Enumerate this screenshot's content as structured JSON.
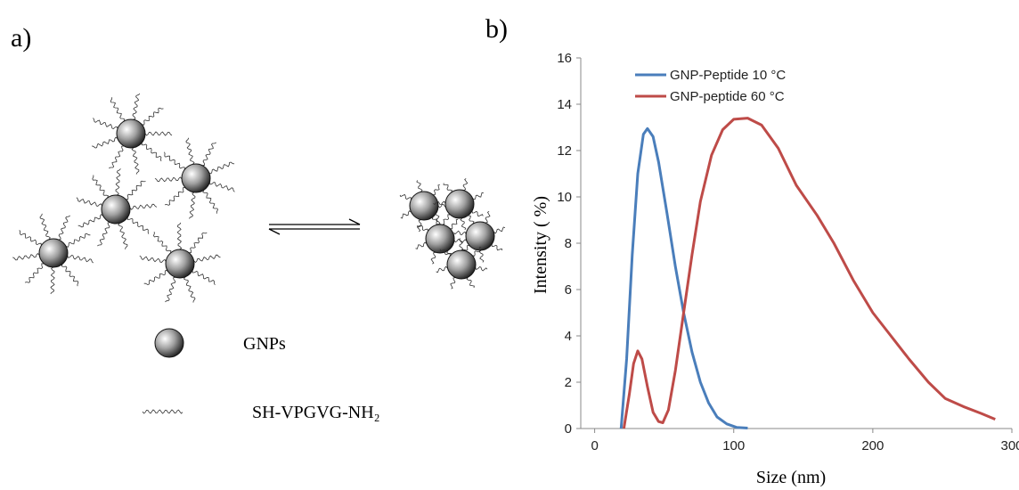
{
  "panel_a": {
    "label": "a)",
    "legend": {
      "particle": "GNPs",
      "ligand": "SH-VPGVG-NH₂"
    }
  },
  "chart_data": {
    "type": "line",
    "panel_label": "b)",
    "x_label": "Size (nm)",
    "y_label": "Intensity ( %)",
    "xlim": [
      -10,
      300
    ],
    "xticks": [
      0,
      100,
      200,
      300
    ],
    "ylim": [
      0,
      16
    ],
    "yticks": [
      0,
      2,
      4,
      6,
      8,
      10,
      12,
      14,
      16
    ],
    "legend": "top-right",
    "series": [
      {
        "name": "GNP-Peptide 10 °C",
        "color": "#4a7ebb",
        "x": [
          19,
          23,
          27,
          31,
          35,
          38,
          42,
          46,
          52,
          58,
          64,
          70,
          76,
          82,
          88,
          95,
          102,
          110
        ],
        "values": [
          0,
          3,
          7.5,
          11,
          12.7,
          12.95,
          12.6,
          11.5,
          9.3,
          7,
          5,
          3.3,
          2,
          1.1,
          0.5,
          0.2,
          0.05,
          0.02
        ]
      },
      {
        "name": "GNP-peptide 60 °C",
        "color": "#be4b48",
        "x": [
          21,
          25,
          28,
          31,
          34,
          38,
          42,
          46,
          49,
          53,
          58,
          64,
          70,
          76,
          84,
          92,
          100,
          110,
          120,
          132,
          145,
          160,
          172,
          186,
          200,
          213,
          226,
          240,
          252,
          265,
          278,
          288
        ],
        "values": [
          0,
          1.5,
          2.8,
          3.35,
          3.0,
          1.8,
          0.7,
          0.3,
          0.25,
          0.8,
          2.5,
          5,
          7.5,
          9.8,
          11.8,
          12.9,
          13.35,
          13.4,
          13.1,
          12.1,
          10.5,
          9.2,
          8.0,
          6.4,
          5.0,
          4.0,
          3.0,
          2.0,
          1.3,
          0.95,
          0.65,
          0.4
        ]
      }
    ]
  }
}
